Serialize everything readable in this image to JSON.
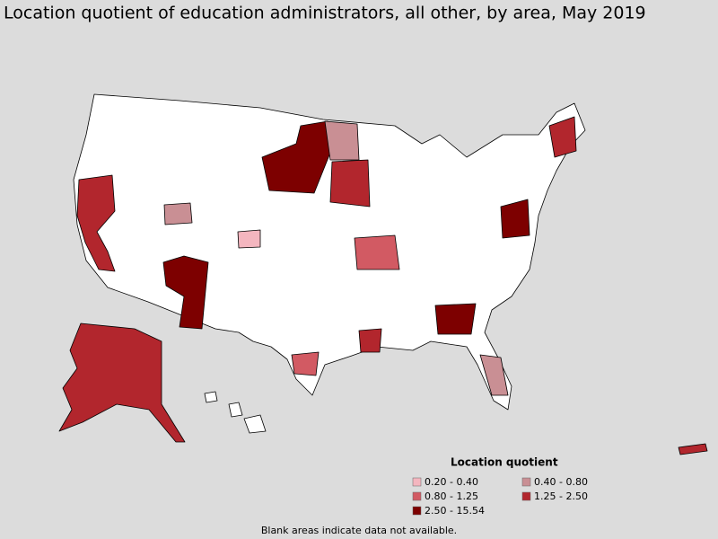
{
  "title": "Location quotient of education administrators, all other, by area, May 2019",
  "legend": {
    "title": "Location quotient",
    "items": [
      {
        "label": "0.20 - 0.40",
        "color": "#f4b6bf"
      },
      {
        "label": "0.40 - 0.80",
        "color": "#c98f94"
      },
      {
        "label": "0.80 - 1.25",
        "color": "#d25a63"
      },
      {
        "label": "1.25 - 2.50",
        "color": "#b2262d"
      },
      {
        "label": "2.50 - 15.54",
        "color": "#7d0000"
      }
    ]
  },
  "footnote": "Blank areas indicate data not available."
}
